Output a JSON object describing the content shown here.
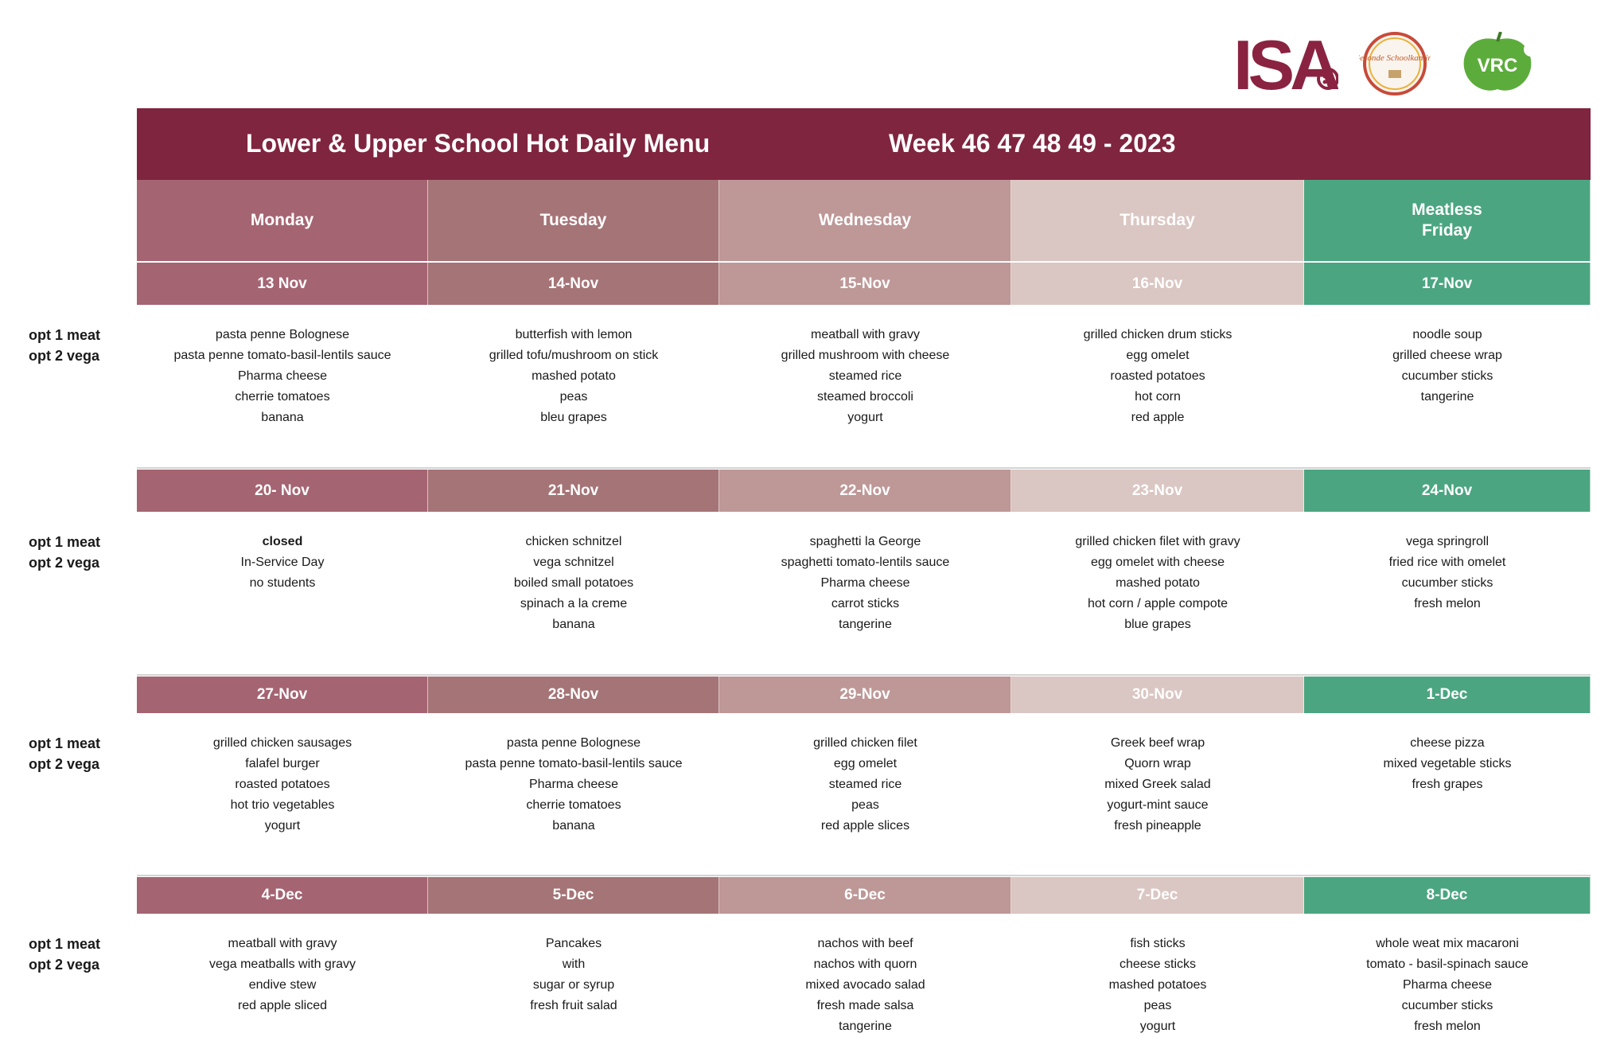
{
  "header": {
    "title": "Lower & Upper School Hot Daily Menu",
    "week": "Week  46 47 48 49 - 2023"
  },
  "logos": {
    "isa_text": "ISA",
    "seal_text": "Gezonde Schoolkantine",
    "vrc_text": "VRC"
  },
  "days": [
    {
      "label": "Monday",
      "color": "#a56472"
    },
    {
      "label": "Tuesday",
      "color": "#a57477"
    },
    {
      "label": "Wednesday",
      "color": "#be9797"
    },
    {
      "label": "Thursday",
      "color": "#dac6c2"
    },
    {
      "label": "Meatless\nFriday",
      "color": "#4ba581"
    }
  ],
  "options_label": [
    "opt 1 meat",
    "opt 2 vega"
  ],
  "weeks": [
    {
      "dates": [
        "13 Nov",
        "14-Nov",
        "15-Nov",
        "16-Nov",
        "17-Nov"
      ],
      "menus": [
        [
          "pasta penne Bolognese",
          "pasta penne tomato-basil-lentils sauce",
          "Pharma cheese",
          "cherrie tomatoes",
          "banana"
        ],
        [
          "butterfish with lemon",
          "grilled tofu/mushroom on stick",
          "mashed potato",
          "peas",
          "bleu grapes"
        ],
        [
          "meatball with gravy",
          "grilled mushroom with cheese",
          "steamed rice",
          "steamed broccoli",
          "yogurt"
        ],
        [
          "grilled chicken drum sticks",
          "egg omelet",
          "roasted potatoes",
          "hot corn",
          "red apple"
        ],
        [
          "noodle soup",
          "grilled cheese wrap",
          "cucumber sticks",
          "tangerine"
        ]
      ]
    },
    {
      "dates": [
        "20- Nov",
        "21-Nov",
        "22-Nov",
        "23-Nov",
        "24-Nov"
      ],
      "menus": [
        [
          "closed",
          "In-Service Day",
          "no students"
        ],
        [
          "chicken schnitzel",
          "vega schnitzel",
          "boiled small potatoes",
          "spinach a la creme",
          "banana"
        ],
        [
          "spaghetti  la George",
          "spaghetti tomato-lentils sauce",
          "Pharma cheese",
          "carrot sticks",
          "tangerine"
        ],
        [
          "grilled chicken filet with gravy",
          "egg omelet with cheese",
          "mashed potato",
          "hot corn / apple compote",
          "blue grapes"
        ],
        [
          "vega springroll",
          "fried rice with omelet",
          "cucumber sticks",
          "fresh melon"
        ]
      ]
    },
    {
      "dates": [
        "27-Nov",
        "28-Nov",
        "29-Nov",
        "30-Nov",
        "1-Dec"
      ],
      "menus": [
        [
          "grilled chicken sausages",
          "falafel burger",
          "roasted potatoes",
          "hot trio vegetables",
          "yogurt"
        ],
        [
          "pasta penne Bolognese",
          "pasta penne tomato-basil-lentils sauce",
          "Pharma cheese",
          "cherrie tomatoes",
          "banana"
        ],
        [
          "grilled chicken filet",
          "egg omelet",
          "steamed rice",
          "peas",
          "red apple slices"
        ],
        [
          "Greek beef wrap",
          "Quorn wrap",
          "mixed Greek salad",
          "yogurt-mint sauce",
          "fresh pineapple"
        ],
        [
          "cheese pizza",
          "mixed vegetable sticks",
          "fresh grapes"
        ]
      ]
    },
    {
      "dates": [
        "4-Dec",
        "5-Dec",
        "6-Dec",
        "7-Dec",
        "8-Dec"
      ],
      "menus": [
        [
          "meatball with gravy",
          "vega meatballs with gravy",
          "endive stew",
          "red apple sliced"
        ],
        [
          "Pancakes",
          "with",
          "sugar or syrup",
          "fresh fruit salad"
        ],
        [
          "nachos with beef",
          "nachos with quorn",
          "mixed avocado salad",
          "fresh made salsa",
          "tangerine"
        ],
        [
          "fish sticks",
          "cheese sticks",
          "mashed potatoes",
          "peas",
          "yogurt"
        ],
        [
          "whole weat mix macaroni",
          "tomato - basil-spinach sauce",
          "Pharma cheese",
          "cucumber sticks",
          "fresh melon"
        ]
      ]
    }
  ]
}
